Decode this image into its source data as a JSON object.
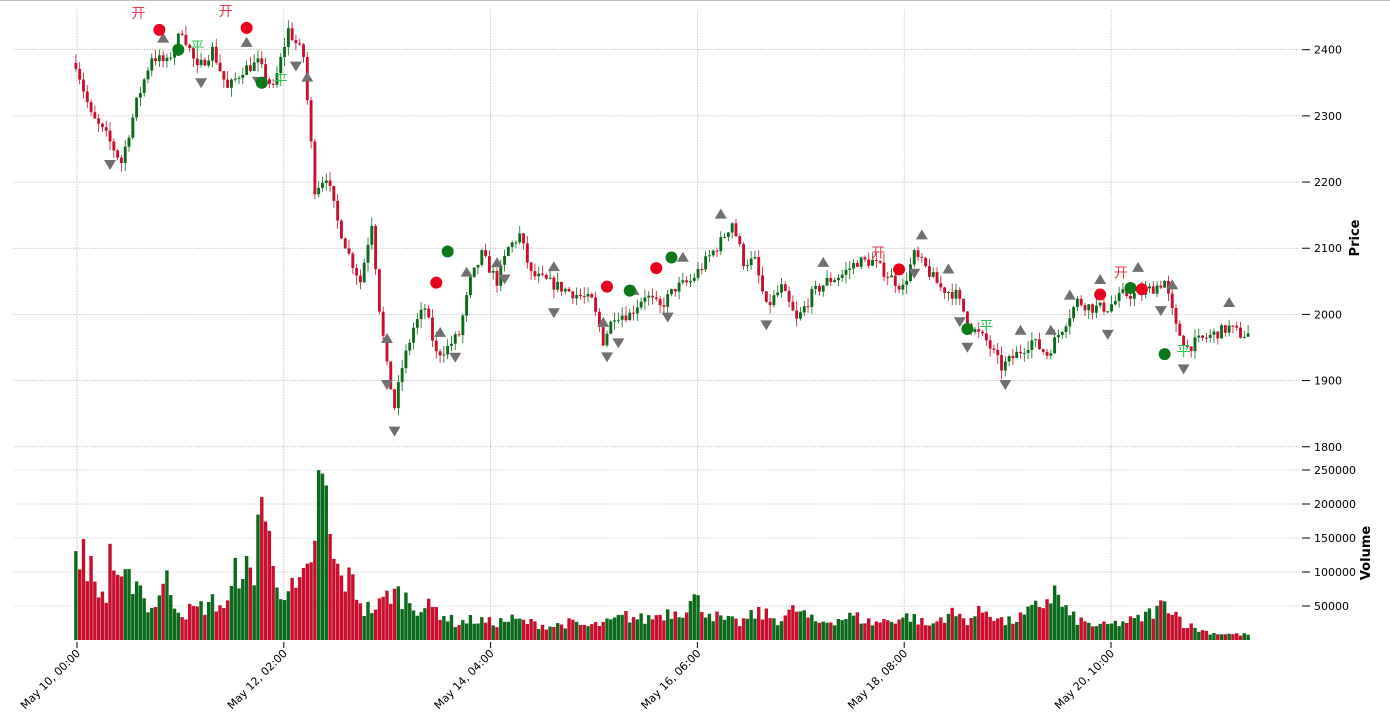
{
  "chart_data": {
    "type": "candlestick",
    "x_tick_labels": [
      "May 10, 00:00",
      "May 12, 02:00",
      "May 14, 04:00",
      "May 16, 06:00",
      "May 18, 08:00",
      "May 20, 10:00"
    ],
    "price_axis": {
      "label": "Price",
      "ylim": [
        1780,
        2460
      ],
      "ticks": [
        1800,
        1900,
        2000,
        2100,
        2200,
        2300,
        2400
      ]
    },
    "volume_axis": {
      "label": "Volume",
      "ylim": [
        0,
        250000
      ],
      "ticks": [
        50000,
        100000,
        150000,
        200000,
        250000
      ]
    },
    "grid": true,
    "colors": {
      "up": "#0b6b1b",
      "down": "#c8102e",
      "marker": "#707070",
      "open_label": "#e8384f",
      "close_label": "#29c44f"
    },
    "ohlc_anchors": [
      [
        0,
        2380
      ],
      [
        4,
        2300
      ],
      [
        8,
        2270
      ],
      [
        12,
        2230
      ],
      [
        16,
        2320
      ],
      [
        20,
        2390
      ],
      [
        24,
        2380
      ],
      [
        28,
        2430
      ],
      [
        32,
        2370
      ],
      [
        36,
        2400
      ],
      [
        40,
        2340
      ],
      [
        44,
        2370
      ],
      [
        48,
        2380
      ],
      [
        52,
        2340
      ],
      [
        56,
        2430
      ],
      [
        60,
        2390
      ],
      [
        63,
        2190
      ],
      [
        66,
        2210
      ],
      [
        69,
        2140
      ],
      [
        72,
        2090
      ],
      [
        75,
        2050
      ],
      [
        78,
        2140
      ],
      [
        80,
        2010
      ],
      [
        82,
        1920
      ],
      [
        84,
        1860
      ],
      [
        86,
        1920
      ],
      [
        89,
        1980
      ],
      [
        92,
        2010
      ],
      [
        95,
        1940
      ],
      [
        98,
        1950
      ],
      [
        101,
        1970
      ],
      [
        104,
        2050
      ],
      [
        107,
        2090
      ],
      [
        111,
        2050
      ],
      [
        114,
        2100
      ],
      [
        117,
        2120
      ],
      [
        120,
        2060
      ],
      [
        124,
        2050
      ],
      [
        128,
        2040
      ],
      [
        132,
        2030
      ],
      [
        136,
        2020
      ],
      [
        139,
        1960
      ],
      [
        142,
        2000
      ],
      [
        146,
        2000
      ],
      [
        150,
        2030
      ],
      [
        154,
        2010
      ],
      [
        158,
        2040
      ],
      [
        162,
        2050
      ],
      [
        166,
        2080
      ],
      [
        170,
        2110
      ],
      [
        173,
        2140
      ],
      [
        176,
        2080
      ],
      [
        179,
        2080
      ],
      [
        182,
        2010
      ],
      [
        186,
        2040
      ],
      [
        190,
        1990
      ],
      [
        194,
        2030
      ],
      [
        198,
        2050
      ],
      [
        202,
        2060
      ],
      [
        206,
        2080
      ],
      [
        210,
        2080
      ],
      [
        214,
        2060
      ],
      [
        218,
        2040
      ],
      [
        221,
        2090
      ],
      [
        224,
        2070
      ],
      [
        228,
        2040
      ],
      [
        232,
        2030
      ],
      [
        236,
        1980
      ],
      [
        240,
        1960
      ],
      [
        244,
        1920
      ],
      [
        248,
        1940
      ],
      [
        252,
        1960
      ],
      [
        256,
        1940
      ],
      [
        260,
        1980
      ],
      [
        264,
        2020
      ],
      [
        268,
        2010
      ],
      [
        272,
        2010
      ],
      [
        276,
        2030
      ],
      [
        280,
        2030
      ],
      [
        284,
        2040
      ],
      [
        287,
        2050
      ],
      [
        290,
        1980
      ],
      [
        293,
        1950
      ],
      [
        296,
        1960
      ],
      [
        300,
        1970
      ],
      [
        304,
        1980
      ],
      [
        307,
        1970
      ]
    ],
    "volume_profile": [
      [
        0,
        105000
      ],
      [
        2,
        140000
      ],
      [
        5,
        80000
      ],
      [
        8,
        60000
      ],
      [
        9,
        140000
      ],
      [
        11,
        75000
      ],
      [
        14,
        85000
      ],
      [
        16,
        100000
      ],
      [
        18,
        60000
      ],
      [
        20,
        45000
      ],
      [
        22,
        70000
      ],
      [
        24,
        85000
      ],
      [
        26,
        60000
      ],
      [
        28,
        40000
      ],
      [
        32,
        45000
      ],
      [
        36,
        55000
      ],
      [
        40,
        50000
      ],
      [
        42,
        95000
      ],
      [
        44,
        115000
      ],
      [
        47,
        75000
      ],
      [
        48,
        240000
      ],
      [
        50,
        180000
      ],
      [
        52,
        100000
      ],
      [
        54,
        80000
      ],
      [
        58,
        70000
      ],
      [
        62,
        100000
      ],
      [
        64,
        225000
      ],
      [
        66,
        200000
      ],
      [
        68,
        110000
      ],
      [
        70,
        90000
      ],
      [
        73,
        85000
      ],
      [
        76,
        45000
      ],
      [
        80,
        50000
      ],
      [
        83,
        70000
      ],
      [
        86,
        65000
      ],
      [
        90,
        50000
      ],
      [
        95,
        45000
      ],
      [
        100,
        25000
      ],
      [
        105,
        30000
      ],
      [
        110,
        25000
      ],
      [
        115,
        30000
      ],
      [
        120,
        25000
      ],
      [
        125,
        20000
      ],
      [
        130,
        25000
      ],
      [
        135,
        20000
      ],
      [
        140,
        25000
      ],
      [
        145,
        35000
      ],
      [
        150,
        30000
      ],
      [
        155,
        40000
      ],
      [
        160,
        45000
      ],
      [
        163,
        60000
      ],
      [
        166,
        45000
      ],
      [
        170,
        30000
      ],
      [
        175,
        25000
      ],
      [
        180,
        40000
      ],
      [
        185,
        30000
      ],
      [
        190,
        45000
      ],
      [
        195,
        25000
      ],
      [
        200,
        30000
      ],
      [
        205,
        35000
      ],
      [
        210,
        25000
      ],
      [
        215,
        30000
      ],
      [
        220,
        35000
      ],
      [
        225,
        20000
      ],
      [
        230,
        40000
      ],
      [
        235,
        30000
      ],
      [
        240,
        45000
      ],
      [
        245,
        25000
      ],
      [
        250,
        35000
      ],
      [
        255,
        55000
      ],
      [
        258,
        70000
      ],
      [
        262,
        35000
      ],
      [
        266,
        25000
      ],
      [
        270,
        20000
      ],
      [
        275,
        25000
      ],
      [
        280,
        30000
      ],
      [
        285,
        45000
      ],
      [
        288,
        55000
      ],
      [
        292,
        25000
      ],
      [
        296,
        15000
      ],
      [
        300,
        10000
      ],
      [
        307,
        8000
      ]
    ],
    "signals": [
      {
        "type": "open",
        "label": "开",
        "bar": 22,
        "price": 2430
      },
      {
        "type": "close",
        "label": "平",
        "bar": 27,
        "price": 2400
      },
      {
        "type": "open",
        "label": "开",
        "bar": 45,
        "price": 2433
      },
      {
        "type": "close",
        "label": "平",
        "bar": 49,
        "price": 2350
      },
      {
        "type": "open",
        "bar": 95,
        "price": 2048
      },
      {
        "type": "close",
        "bar": 98,
        "price": 2095
      },
      {
        "type": "open",
        "bar": 140,
        "price": 2042
      },
      {
        "type": "close",
        "bar": 146,
        "price": 2036
      },
      {
        "type": "open",
        "bar": 153,
        "price": 2070
      },
      {
        "type": "close",
        "bar": 157,
        "price": 2086
      },
      {
        "type": "open",
        "label": "开",
        "bar": 217,
        "price": 2068
      },
      {
        "type": "close",
        "label": "平",
        "bar": 235,
        "price": 1978
      },
      {
        "type": "open",
        "bar": 270,
        "price": 2030
      },
      {
        "type": "close",
        "bar": 278,
        "price": 2040
      },
      {
        "type": "open",
        "label": "开",
        "bar": 281,
        "price": 2038
      },
      {
        "type": "close",
        "label": "平",
        "bar": 287,
        "price": 1940
      }
    ],
    "peak_markers": [
      23,
      45,
      61,
      82,
      96,
      103,
      111,
      126,
      139,
      147,
      160,
      170,
      197,
      223,
      230,
      249,
      257,
      262,
      270,
      280,
      289,
      304
    ],
    "trough_markers": [
      9,
      33,
      48,
      58,
      82,
      84,
      100,
      113,
      126,
      140,
      143,
      156,
      182,
      221,
      233,
      235,
      245,
      272,
      286,
      292
    ]
  }
}
